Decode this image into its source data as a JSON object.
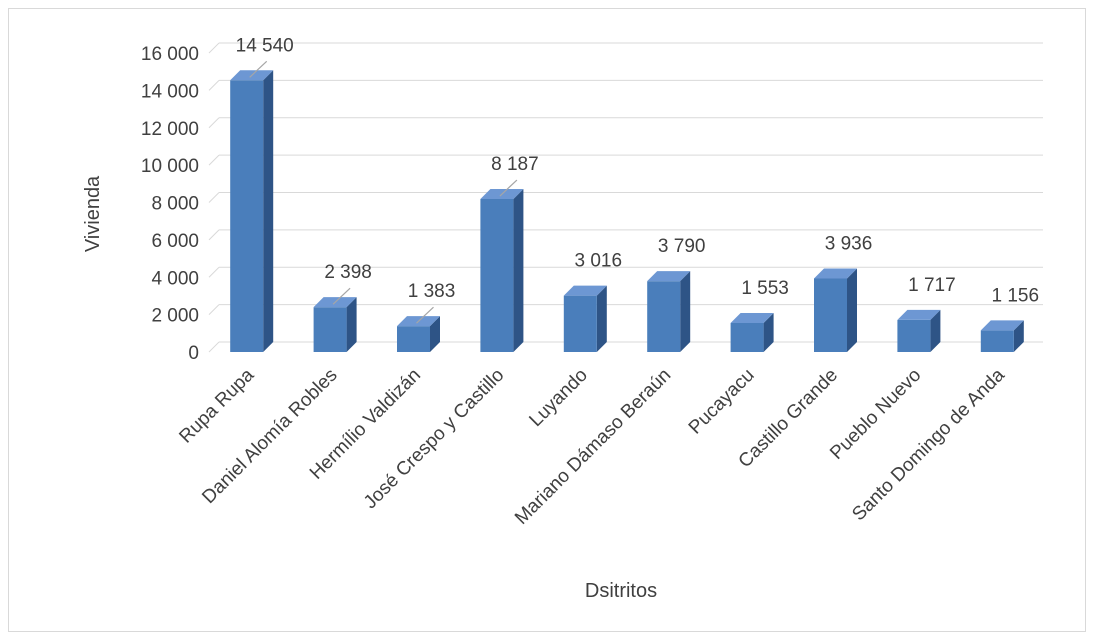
{
  "chart_data": {
    "type": "bar",
    "title": "",
    "xlabel": "Dsitritos",
    "ylabel": "Vivienda",
    "categories": [
      "Rupa Rupa",
      "Daniel Alomía Robles",
      "Hermílio Valdizán",
      "José Crespo y Castillo",
      "Luyando",
      "Mariano Dámaso Beraún",
      "Pucayacu",
      "Castillo Grande",
      "Pueblo Nuevo",
      "Santo Domingo de Anda"
    ],
    "values": [
      14540,
      2398,
      1383,
      8187,
      3016,
      3790,
      1553,
      3936,
      1717,
      1156
    ],
    "data_labels": [
      "14 540",
      "2 398",
      "1 383",
      "8 187",
      "3 016",
      "3 790",
      "1 553",
      "3 936",
      "1 717",
      "1 156"
    ],
    "yticks": [
      0,
      2000,
      4000,
      6000,
      8000,
      10000,
      12000,
      14000,
      16000
    ],
    "ytick_labels": [
      "0",
      "2 000",
      "4 000",
      "6 000",
      "8 000",
      "10 000",
      "12 000",
      "14 000",
      "16 000"
    ],
    "ylim": [
      0,
      16000
    ],
    "grid": true,
    "style": "3d-column",
    "colors": {
      "bar_front": "#4a7ebb",
      "bar_side": "#2e5486",
      "bar_top": "#6d97d3",
      "grid": "#d9d9d9",
      "text": "#404040"
    }
  }
}
